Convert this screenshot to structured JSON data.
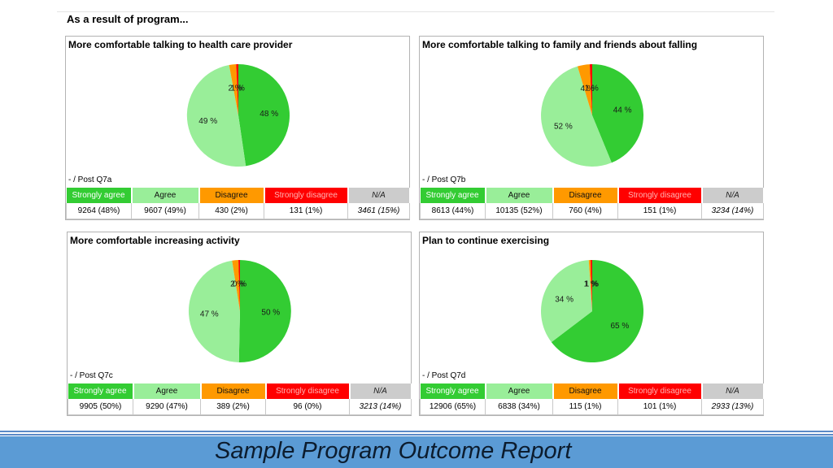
{
  "heading": "As a result of program...",
  "legend_labels": [
    "Strongly agree",
    "Agree",
    "Disagree",
    "Strongly disagree",
    "N/A"
  ],
  "colors": {
    "strongly_agree": "#33cc33",
    "agree": "#99ee99",
    "disagree": "#ff9900",
    "strongly_disagree": "#ff0000",
    "na": "#cccccc",
    "footer": "#5b9bd5"
  },
  "chart_data": [
    {
      "type": "pie",
      "title": "More comfortable talking to health care provider",
      "post_label": "-  / Post Q7a",
      "series": [
        "Strongly agree",
        "Agree",
        "Disagree",
        "Strongly disagree"
      ],
      "values": [
        9264,
        9607,
        430,
        131
      ],
      "slice_labels": [
        "48 %",
        "49 %",
        "2 %",
        "1 %"
      ],
      "table_values": [
        "9264 (48%)",
        "9607 (49%)",
        "430 (2%)",
        "131 (1%)",
        "3461 (15%)"
      ]
    },
    {
      "type": "pie",
      "title": "More comfortable talking to family and friends about falling",
      "post_label": "-  / Post Q7b",
      "series": [
        "Strongly agree",
        "Agree",
        "Disagree",
        "Strongly disagree"
      ],
      "values": [
        8613,
        10135,
        760,
        151
      ],
      "slice_labels": [
        "44 %",
        "52 %",
        "4 %",
        "1 %"
      ],
      "table_values": [
        "8613 (44%)",
        "10135 (52%)",
        "760 (4%)",
        "151 (1%)",
        "3234 (14%)"
      ]
    },
    {
      "type": "pie",
      "title": "More comfortable increasing activity",
      "post_label": "-  / Post Q7c",
      "series": [
        "Strongly agree",
        "Agree",
        "Disagree",
        "Strongly disagree"
      ],
      "values": [
        9905,
        9290,
        389,
        96
      ],
      "slice_labels": [
        "50 %",
        "47 %",
        "2 %",
        "0 %"
      ],
      "table_values": [
        "9905 (50%)",
        "9290 (47%)",
        "389 (2%)",
        "96 (0%)",
        "3213 (14%)"
      ]
    },
    {
      "type": "pie",
      "title": "Plan to continue exercising",
      "post_label": "-  / Post Q7d",
      "series": [
        "Strongly agree",
        "Agree",
        "Disagree",
        "Strongly disagree"
      ],
      "values": [
        12906,
        6838,
        115,
        101
      ],
      "slice_labels": [
        "65 %",
        "34 %",
        "1 %",
        "1 %"
      ],
      "table_values": [
        "12906 (65%)",
        "6838 (34%)",
        "115 (1%)",
        "101 (1%)",
        "2933 (13%)"
      ]
    }
  ],
  "footer": {
    "title": "Sample Program Outcome Report"
  }
}
